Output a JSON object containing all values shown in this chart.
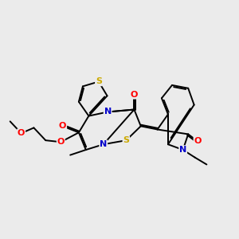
{
  "bg_color": "#ebebeb",
  "bond_color": "#000000",
  "bond_width": 1.4,
  "atom_colors": {
    "O": "#ff0000",
    "N": "#0000cc",
    "S": "#ccaa00",
    "C": "#000000"
  },
  "font_size": 8,
  "xlim": [
    0,
    10
  ],
  "ylim": [
    0,
    10
  ]
}
